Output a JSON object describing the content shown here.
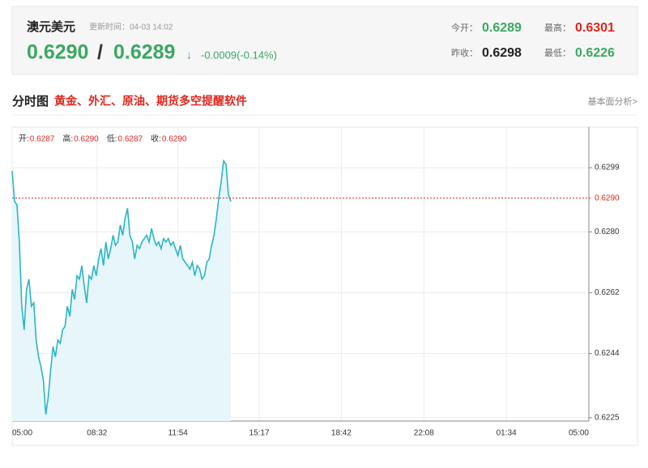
{
  "header": {
    "title": "澳元美元",
    "update": "更新时间：04-03 14:02",
    "price": "0.6290",
    "separator": "/",
    "price2": "0.6289",
    "arrow": "↓",
    "change": "-0.0009(-0.14%)",
    "stats": [
      {
        "label": "今开：",
        "value": "0.6289",
        "tone": "green"
      },
      {
        "label": "最高：",
        "value": "0.6301",
        "tone": "red"
      },
      {
        "label": "昨收：",
        "value": "0.6298",
        "tone": "dark"
      },
      {
        "label": "最低：",
        "value": "0.6226",
        "tone": "green"
      }
    ]
  },
  "section": {
    "title": "分时图",
    "promo": "黄金、外汇、原油、期货多空提醒软件",
    "link": "基本面分析>"
  },
  "chart_data": {
    "type": "line",
    "info": [
      {
        "label": "开:",
        "value": "0.6287"
      },
      {
        "label": "高:",
        "value": "0.6290"
      },
      {
        "label": "低:",
        "value": "0.6287"
      },
      {
        "label": "收:",
        "value": "0.6290"
      }
    ],
    "x": [
      0,
      6,
      12,
      18,
      24,
      30,
      36,
      42,
      48,
      54,
      60,
      66,
      72,
      78,
      84,
      90,
      96,
      102,
      108,
      114,
      120,
      126,
      132,
      138,
      144,
      150,
      156,
      162,
      168,
      174,
      180,
      186,
      192,
      198,
      204,
      210,
      216,
      222,
      228,
      234,
      240,
      246,
      252,
      258,
      264,
      270,
      276,
      282,
      288,
      294,
      300,
      306,
      312,
      318,
      324,
      330,
      336,
      342,
      348,
      354,
      360,
      366,
      372,
      378,
      384,
      390,
      396,
      402,
      408,
      414,
      420,
      426,
      432,
      438,
      444,
      450,
      456,
      462,
      468,
      474,
      480,
      486,
      492,
      498,
      504,
      510,
      516,
      522,
      528,
      534,
      540,
      546
    ],
    "series": [
      {
        "color": "#29b5c6",
        "values": [
          0.6298,
          0.6289,
          0.6288,
          0.6277,
          0.6258,
          0.6251,
          0.6263,
          0.6266,
          0.6258,
          0.6259,
          0.6248,
          0.6243,
          0.624,
          0.6236,
          0.6226,
          0.6231,
          0.6239,
          0.6246,
          0.6243,
          0.6248,
          0.6247,
          0.6251,
          0.6252,
          0.6258,
          0.6255,
          0.6263,
          0.626,
          0.6267,
          0.6266,
          0.627,
          0.6264,
          0.6259,
          0.6267,
          0.6266,
          0.627,
          0.6267,
          0.6272,
          0.6275,
          0.627,
          0.6277,
          0.6272,
          0.6275,
          0.6279,
          0.6276,
          0.6277,
          0.6282,
          0.6279,
          0.6284,
          0.6287,
          0.6279,
          0.6277,
          0.6272,
          0.6276,
          0.6275,
          0.6277,
          0.6278,
          0.6279,
          0.6277,
          0.6281,
          0.6278,
          0.6276,
          0.6277,
          0.6275,
          0.6278,
          0.6277,
          0.6278,
          0.6276,
          0.6277,
          0.6275,
          0.6273,
          0.6276,
          0.6272,
          0.6271,
          0.627,
          0.6269,
          0.6271,
          0.6267,
          0.627,
          0.6269,
          0.6266,
          0.6267,
          0.6271,
          0.6272,
          0.6276,
          0.6279,
          0.6284,
          0.629,
          0.6295,
          0.6301,
          0.63,
          0.6291,
          0.6289
        ]
      }
    ],
    "area_color": "#e6f6fa",
    "xlim": [
      0,
      1440
    ],
    "xticks": [
      {
        "value": 0,
        "label": "05:00"
      },
      {
        "value": 212,
        "label": "08:32"
      },
      {
        "value": 414,
        "label": "11:54"
      },
      {
        "value": 617,
        "label": "15:17"
      },
      {
        "value": 822,
        "label": "18:42"
      },
      {
        "value": 1028,
        "label": "22:08"
      },
      {
        "value": 1234,
        "label": "01:34"
      },
      {
        "value": 1440,
        "label": "05:00"
      }
    ],
    "ylim": [
      0.6224,
      0.6311
    ],
    "yticks": [
      0.6225,
      0.6244,
      0.6262,
      {
        "value": 0.628,
        "label": "0.6280"
      },
      0.6299
    ],
    "reference_line": {
      "value": 0.629,
      "label": "0.6290",
      "color": "#e0261d"
    },
    "grid": true
  }
}
